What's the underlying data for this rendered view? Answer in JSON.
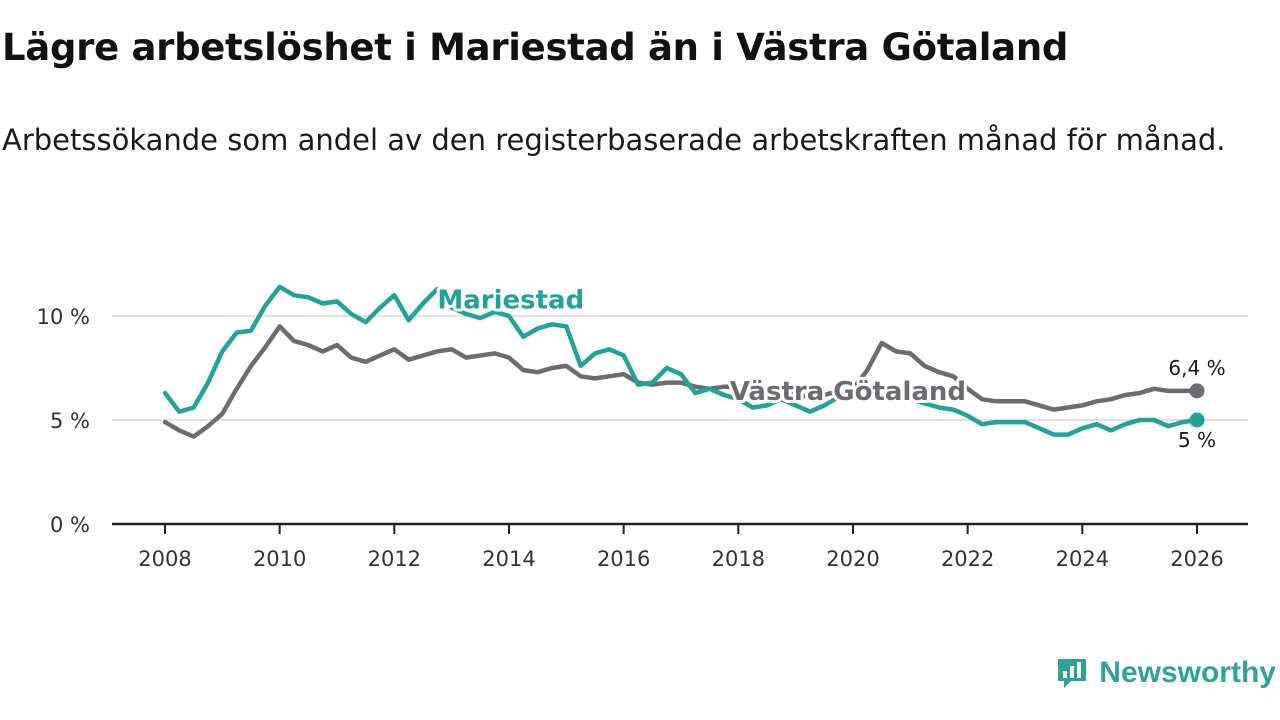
{
  "title": "Lägre arbetslöshet i Mariestad än i Västra Götaland",
  "subtitle": "Arbetssökande som andel av den registerbaserade arbetskraften månad för månad.",
  "brand": {
    "name": "Newsworthy",
    "color": "#2ea39b"
  },
  "chart_data": {
    "type": "line",
    "x_unit": "year",
    "xlim": [
      2008,
      2026
    ],
    "x_ticks": [
      2008,
      2010,
      2012,
      2014,
      2016,
      2018,
      2020,
      2022,
      2024,
      2026
    ],
    "x_tick_labels": [
      "2008",
      "2010",
      "2012",
      "2014",
      "2016",
      "2018",
      "2020",
      "2022",
      "2024",
      "2026"
    ],
    "ylim": [
      0,
      12
    ],
    "y_ticks": [
      0,
      5,
      10
    ],
    "y_tick_labels": [
      "0 %",
      "5 %",
      "10 %"
    ],
    "grid": true,
    "series": [
      {
        "name": "Västra Götaland",
        "color": "#6d6b6f",
        "end_label": "6,4 %",
        "x": [
          2008.0,
          2008.25,
          2008.5,
          2008.75,
          2009.0,
          2009.25,
          2009.5,
          2009.75,
          2010.0,
          2010.25,
          2010.5,
          2010.75,
          2011.0,
          2011.25,
          2011.5,
          2011.75,
          2012.0,
          2012.25,
          2012.5,
          2012.75,
          2013.0,
          2013.25,
          2013.5,
          2013.75,
          2014.0,
          2014.25,
          2014.5,
          2014.75,
          2015.0,
          2015.25,
          2015.5,
          2015.75,
          2016.0,
          2016.25,
          2016.5,
          2016.75,
          2017.0,
          2017.25,
          2017.5,
          2017.75,
          2018.0,
          2018.25,
          2018.5,
          2018.75,
          2019.0,
          2019.25,
          2019.5,
          2019.75,
          2020.0,
          2020.25,
          2020.5,
          2020.75,
          2021.0,
          2021.25,
          2021.5,
          2021.75,
          2022.0,
          2022.25,
          2022.5,
          2022.75,
          2023.0,
          2023.25,
          2023.5,
          2023.75,
          2024.0,
          2024.25,
          2024.5,
          2024.75,
          2025.0,
          2025.25,
          2025.5,
          2025.75,
          2026.0
        ],
        "values": [
          4.9,
          4.5,
          4.2,
          4.7,
          5.3,
          6.5,
          7.6,
          8.5,
          9.5,
          8.8,
          8.6,
          8.3,
          8.6,
          8.0,
          7.8,
          8.1,
          8.4,
          7.9,
          8.1,
          8.3,
          8.4,
          8.0,
          8.1,
          8.2,
          8.0,
          7.4,
          7.3,
          7.5,
          7.6,
          7.1,
          7.0,
          7.1,
          7.2,
          6.8,
          6.7,
          6.8,
          6.8,
          6.6,
          6.5,
          6.6,
          6.6,
          6.4,
          6.4,
          6.3,
          6.2,
          6.1,
          6.2,
          6.4,
          6.5,
          7.4,
          8.7,
          8.3,
          8.2,
          7.6,
          7.3,
          7.1,
          6.5,
          6.0,
          5.9,
          5.9,
          5.9,
          5.7,
          5.5,
          5.6,
          5.7,
          5.9,
          6.0,
          6.2,
          6.3,
          6.5,
          6.4,
          6.4,
          6.4
        ]
      },
      {
        "name": "Mariestad",
        "color": "#21a39a",
        "end_label": "5 %",
        "x": [
          2008.0,
          2008.25,
          2008.5,
          2008.75,
          2009.0,
          2009.25,
          2009.5,
          2009.75,
          2010.0,
          2010.25,
          2010.5,
          2010.75,
          2011.0,
          2011.25,
          2011.5,
          2011.75,
          2012.0,
          2012.25,
          2012.5,
          2012.75,
          2013.0,
          2013.25,
          2013.5,
          2013.75,
          2014.0,
          2014.25,
          2014.5,
          2014.75,
          2015.0,
          2015.25,
          2015.5,
          2015.75,
          2016.0,
          2016.25,
          2016.5,
          2016.75,
          2017.0,
          2017.25,
          2017.5,
          2017.75,
          2018.0,
          2018.25,
          2018.5,
          2018.75,
          2019.0,
          2019.25,
          2019.5,
          2019.75,
          2020.0,
          2020.25,
          2020.5,
          2020.75,
          2021.0,
          2021.25,
          2021.5,
          2021.75,
          2022.0,
          2022.25,
          2022.5,
          2022.75,
          2023.0,
          2023.25,
          2023.5,
          2023.75,
          2024.0,
          2024.25,
          2024.5,
          2024.75,
          2025.0,
          2025.25,
          2025.5,
          2025.75,
          2026.0
        ],
        "values": [
          6.3,
          5.4,
          5.6,
          6.8,
          8.3,
          9.2,
          9.3,
          10.5,
          11.4,
          11.0,
          10.9,
          10.6,
          10.7,
          10.1,
          9.7,
          10.4,
          11.0,
          9.8,
          10.6,
          11.3,
          10.4,
          10.1,
          9.9,
          10.2,
          10.0,
          9.0,
          9.4,
          9.6,
          9.5,
          7.6,
          8.2,
          8.4,
          8.1,
          6.7,
          6.8,
          7.5,
          7.2,
          6.3,
          6.5,
          6.2,
          6.0,
          5.6,
          5.7,
          6.0,
          5.7,
          5.4,
          5.7,
          6.1,
          6.3,
          6.3,
          6.5,
          6.3,
          6.0,
          5.8,
          5.6,
          5.5,
          5.2,
          4.8,
          4.9,
          4.9,
          4.9,
          4.6,
          4.3,
          4.3,
          4.6,
          4.8,
          4.5,
          4.8,
          5.0,
          5.0,
          4.7,
          4.9,
          5.0
        ]
      }
    ]
  }
}
